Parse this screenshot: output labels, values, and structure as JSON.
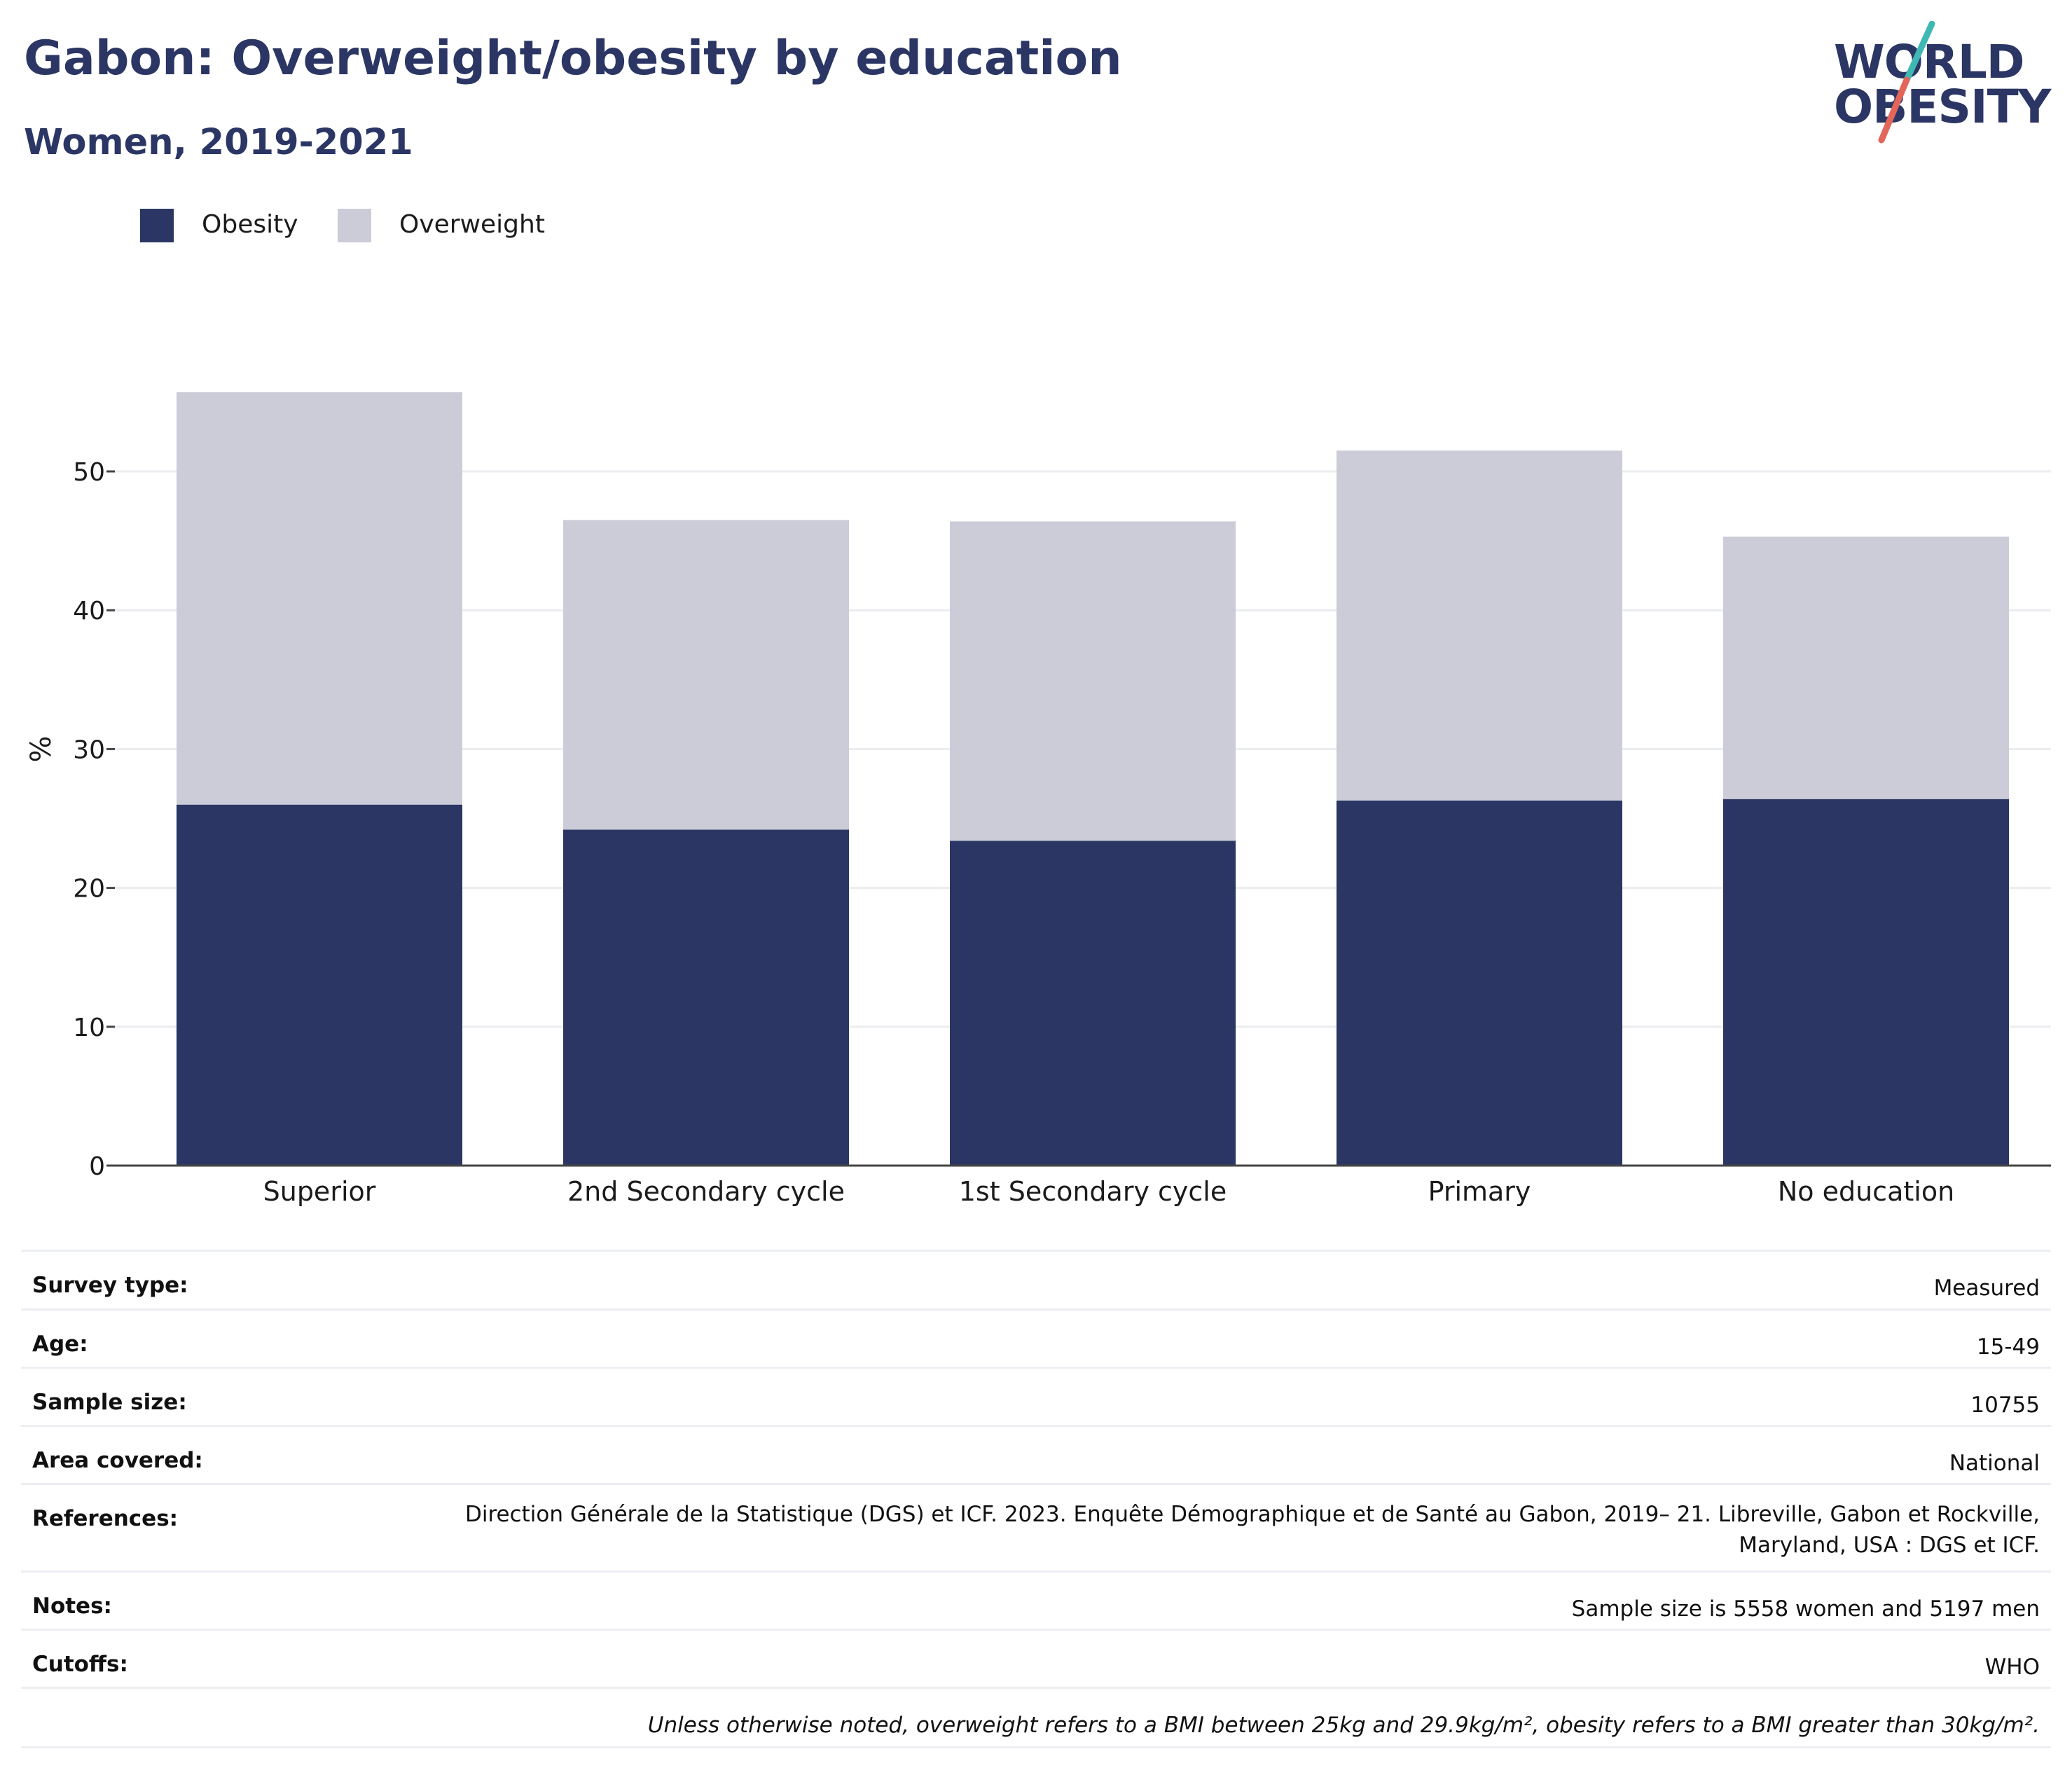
{
  "header": {
    "title": "Gabon: Overweight/obesity by education",
    "subtitle": "Women, 2019-2021"
  },
  "logo": {
    "line1": "WORLD",
    "line2": "OBESITY",
    "accent_teal": "#3fb8b3",
    "accent_red": "#e2665a"
  },
  "legend": {
    "items": [
      {
        "label": "Obesity",
        "color": "#2b3664"
      },
      {
        "label": "Overweight",
        "color": "#cbccd8"
      }
    ]
  },
  "chart_data": {
    "type": "bar",
    "stacked": true,
    "categories": [
      "Superior",
      "2nd Secondary cycle",
      "1st Secondary cycle",
      "Primary",
      "No education"
    ],
    "series": [
      {
        "name": "Obesity",
        "color": "#2b3664",
        "values": [
          26.0,
          24.2,
          23.4,
          26.3,
          26.4
        ]
      },
      {
        "name": "Overweight",
        "color": "#cbccd8",
        "values": [
          29.7,
          22.3,
          23.0,
          25.2,
          18.9
        ]
      }
    ],
    "ylabel": "%",
    "xlabel": "",
    "ylim": [
      0,
      58
    ],
    "yticks": [
      0,
      10,
      20,
      30,
      40,
      50
    ],
    "grid": true,
    "legend_position": "top-left"
  },
  "info": {
    "rows": [
      {
        "label": "Survey type:",
        "value": "Measured"
      },
      {
        "label": "Age:",
        "value": "15-49"
      },
      {
        "label": "Sample size:",
        "value": "10755"
      },
      {
        "label": "Area covered:",
        "value": "National"
      },
      {
        "label": "References:",
        "value": "Direction Générale de la Statistique (DGS) et ICF. 2023. Enquête Démographique et de Santé au Gabon, 2019– 21. Libreville, Gabon et Rockville, Maryland, USA : DGS et ICF."
      },
      {
        "label": "Notes:",
        "value": "Sample size is 5558 women and 5197 men"
      },
      {
        "label": "Cutoffs:",
        "value": "WHO"
      }
    ],
    "footnote": "Unless otherwise noted, overweight refers to a BMI between 25kg and 29.9kg/m², obesity refers to a BMI greater than 30kg/m²."
  }
}
